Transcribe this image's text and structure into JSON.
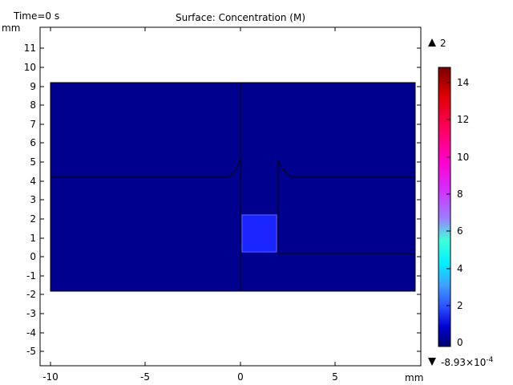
{
  "header": {
    "time_label": "Time=0 s",
    "plot_title": "Surface: Concentration (M)"
  },
  "axes": {
    "x_unit": "mm",
    "y_unit": "mm",
    "x_ticks": [
      "-10",
      "-5",
      "0",
      "5"
    ],
    "y_ticks": [
      "11",
      "10",
      "9",
      "8",
      "7",
      "6",
      "5",
      "4",
      "3",
      "2",
      "1",
      "0",
      "-1",
      "-2",
      "-3",
      "-4",
      "-5"
    ]
  },
  "colorbar": {
    "max_label": "2",
    "min_label": "-8.93×10",
    "min_exponent": "-4",
    "ticks": [
      "14",
      "12",
      "10",
      "8",
      "6",
      "4",
      "2",
      "0"
    ],
    "max_icon": "triangle-up-icon",
    "min_icon": "triangle-down-icon"
  },
  "colors": {
    "domain_fill": "#00008f",
    "highlight_fill": "#1a25ff",
    "highlight_border": "#3a4dff",
    "edge": "#000000"
  }
}
